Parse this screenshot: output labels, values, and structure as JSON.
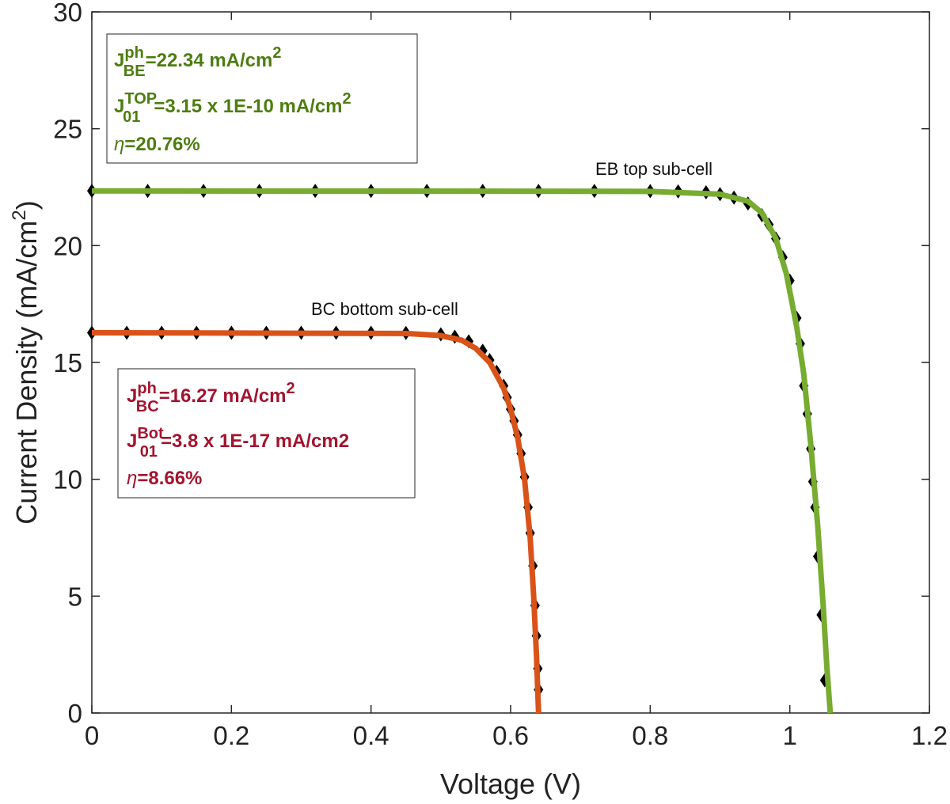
{
  "chart_data": {
    "type": "line",
    "xlabel": "Voltage (V)",
    "ylabel_prefix": "Current Density (mA/cm",
    "ylabel_sup": "2",
    "ylabel_suffix": ")",
    "xlim": [
      0,
      1.2
    ],
    "ylim": [
      0,
      30
    ],
    "x_ticks": [
      0,
      0.2,
      0.4,
      0.6,
      0.8,
      1,
      1.2
    ],
    "x_tick_labels": [
      "0",
      "0.2",
      "0.4",
      "0.6",
      "0.8",
      "1",
      "1.2"
    ],
    "y_ticks": [
      0,
      5,
      10,
      15,
      20,
      25,
      30
    ],
    "y_tick_labels": [
      "0",
      "5",
      "10",
      "15",
      "20",
      "25",
      "30"
    ],
    "grid": false,
    "colors": {
      "top_line": "#77ac30",
      "bottom_line": "#d95319",
      "markers": "#000000",
      "top_text": "#4d7d10",
      "bottom_text": "#a2142f"
    },
    "series": [
      {
        "label": "EB top sub-cell",
        "role": "top",
        "fit": [
          [
            0,
            22.34
          ],
          [
            0.8,
            22.32
          ],
          [
            0.9,
            22.2
          ],
          [
            0.94,
            21.9
          ],
          [
            0.96,
            21.4
          ],
          [
            0.98,
            20.3
          ],
          [
            0.995,
            18.8
          ],
          [
            1.01,
            16.5
          ],
          [
            1.02,
            14.5
          ],
          [
            1.03,
            11.5
          ],
          [
            1.04,
            8.0
          ],
          [
            1.048,
            4.5
          ],
          [
            1.053,
            2.0
          ],
          [
            1.058,
            0
          ]
        ],
        "markers": [
          [
            0,
            22.34
          ],
          [
            0.08,
            22.34
          ],
          [
            0.16,
            22.34
          ],
          [
            0.24,
            22.34
          ],
          [
            0.32,
            22.34
          ],
          [
            0.4,
            22.34
          ],
          [
            0.48,
            22.34
          ],
          [
            0.56,
            22.34
          ],
          [
            0.64,
            22.34
          ],
          [
            0.72,
            22.34
          ],
          [
            0.8,
            22.33
          ],
          [
            0.84,
            22.32
          ],
          [
            0.88,
            22.28
          ],
          [
            0.9,
            22.2
          ],
          [
            0.92,
            22.05
          ],
          [
            0.94,
            21.8
          ],
          [
            0.96,
            21.3
          ],
          [
            0.97,
            20.9
          ],
          [
            0.98,
            20.3
          ],
          [
            0.99,
            19.5
          ],
          [
            1.0,
            18.5
          ],
          [
            1.01,
            16.9
          ],
          [
            1.015,
            15.8
          ],
          [
            1.02,
            14.0
          ],
          [
            1.025,
            12.8
          ],
          [
            1.03,
            11.3
          ],
          [
            1.033,
            9.9
          ],
          [
            1.036,
            8.8
          ],
          [
            1.04,
            6.7
          ],
          [
            1.045,
            4.2
          ],
          [
            1.05,
            1.4
          ]
        ]
      },
      {
        "label": "BC bottom sub-cell",
        "role": "bottom",
        "fit": [
          [
            0,
            16.27
          ],
          [
            0.45,
            16.24
          ],
          [
            0.5,
            16.15
          ],
          [
            0.53,
            15.95
          ],
          [
            0.55,
            15.6
          ],
          [
            0.57,
            15.0
          ],
          [
            0.59,
            13.9
          ],
          [
            0.6,
            13.0
          ],
          [
            0.61,
            11.8
          ],
          [
            0.62,
            10.0
          ],
          [
            0.628,
            7.5
          ],
          [
            0.633,
            5.0
          ],
          [
            0.637,
            2.5
          ],
          [
            0.64,
            0
          ]
        ],
        "markers": [
          [
            0,
            16.27
          ],
          [
            0.05,
            16.27
          ],
          [
            0.1,
            16.27
          ],
          [
            0.15,
            16.27
          ],
          [
            0.2,
            16.27
          ],
          [
            0.25,
            16.27
          ],
          [
            0.3,
            16.27
          ],
          [
            0.35,
            16.27
          ],
          [
            0.4,
            16.27
          ],
          [
            0.45,
            16.26
          ],
          [
            0.5,
            16.2
          ],
          [
            0.52,
            16.1
          ],
          [
            0.54,
            15.9
          ],
          [
            0.56,
            15.5
          ],
          [
            0.57,
            15.1
          ],
          [
            0.58,
            14.6
          ],
          [
            0.59,
            14.0
          ],
          [
            0.595,
            13.5
          ],
          [
            0.6,
            13.0
          ],
          [
            0.605,
            12.5
          ],
          [
            0.61,
            11.9
          ],
          [
            0.615,
            11.1
          ],
          [
            0.62,
            10.1
          ],
          [
            0.625,
            8.8
          ],
          [
            0.628,
            7.7
          ],
          [
            0.632,
            6.3
          ],
          [
            0.635,
            4.6
          ],
          [
            0.637,
            3.3
          ],
          [
            0.639,
            1.9
          ],
          [
            0.64,
            1.0
          ]
        ]
      }
    ],
    "top_box": {
      "j_ph_base": "J",
      "j_ph_sup": "ph",
      "j_ph_sub": "BE",
      "j_ph_value": "=22.34 mA/cm",
      "j_ph_unit_sup": "2",
      "j_01_base": "J",
      "j_01_sup": "TOP",
      "j_01_sub": "01",
      "j_01_value": "=3.15 x 1E-10 mA/cm",
      "j_01_unit_sup": "2",
      "eta_symbol": "η",
      "eta_value": "=20.76%"
    },
    "bottom_box": {
      "j_ph_base": "J",
      "j_ph_sup": "ph",
      "j_ph_sub": "BC",
      "j_ph_value": "=16.27 mA/cm",
      "j_ph_unit_sup": "2",
      "j_01_base": "J",
      "j_01_sup": "Bot",
      "j_01_sub": "01",
      "j_01_value": "=3.8 x 1E-17 mA/cm2",
      "eta_symbol": "η",
      "eta_value": "=8.66%"
    }
  }
}
